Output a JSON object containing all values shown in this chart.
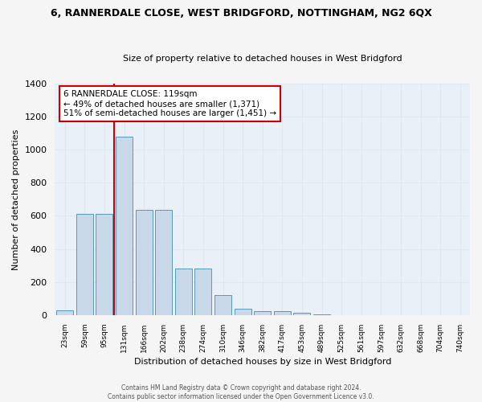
{
  "title": "6, RANNERDALE CLOSE, WEST BRIDGFORD, NOTTINGHAM, NG2 6QX",
  "subtitle": "Size of property relative to detached houses in West Bridgford",
  "xlabel": "Distribution of detached houses by size in West Bridgford",
  "ylabel": "Number of detached properties",
  "bin_labels": [
    "23sqm",
    "59sqm",
    "95sqm",
    "131sqm",
    "166sqm",
    "202sqm",
    "238sqm",
    "274sqm",
    "310sqm",
    "346sqm",
    "382sqm",
    "417sqm",
    "453sqm",
    "489sqm",
    "525sqm",
    "561sqm",
    "597sqm",
    "632sqm",
    "668sqm",
    "704sqm",
    "740sqm"
  ],
  "bar_centers": [
    0,
    1,
    2,
    3,
    4,
    5,
    6,
    7,
    8,
    9,
    10,
    11,
    12,
    13,
    14,
    15,
    16,
    17,
    18,
    19,
    20
  ],
  "bar_heights": [
    30,
    610,
    610,
    1080,
    635,
    635,
    280,
    280,
    120,
    40,
    25,
    25,
    15,
    5,
    0,
    0,
    0,
    0,
    0,
    0,
    0
  ],
  "bar_color": "#c8d8e8",
  "bar_edge_color": "#5599bb",
  "vline_position": 2.5,
  "vline_color": "#cc0000",
  "ylim": [
    0,
    1400
  ],
  "yticks": [
    0,
    200,
    400,
    600,
    800,
    1000,
    1200,
    1400
  ],
  "annotation_text": "6 RANNERDALE CLOSE: 119sqm\n← 49% of detached houses are smaller (1,371)\n51% of semi-detached houses are larger (1,451) →",
  "annotation_box_color": "#ffffff",
  "annotation_box_edge": "#cc0000",
  "footer": "Contains HM Land Registry data © Crown copyright and database right 2024.\nContains public sector information licensed under the Open Government Licence v3.0.",
  "background_color": "#eaf0f8",
  "grid_color": "#dde8f0",
  "fig_bg_color": "#f5f5f5"
}
